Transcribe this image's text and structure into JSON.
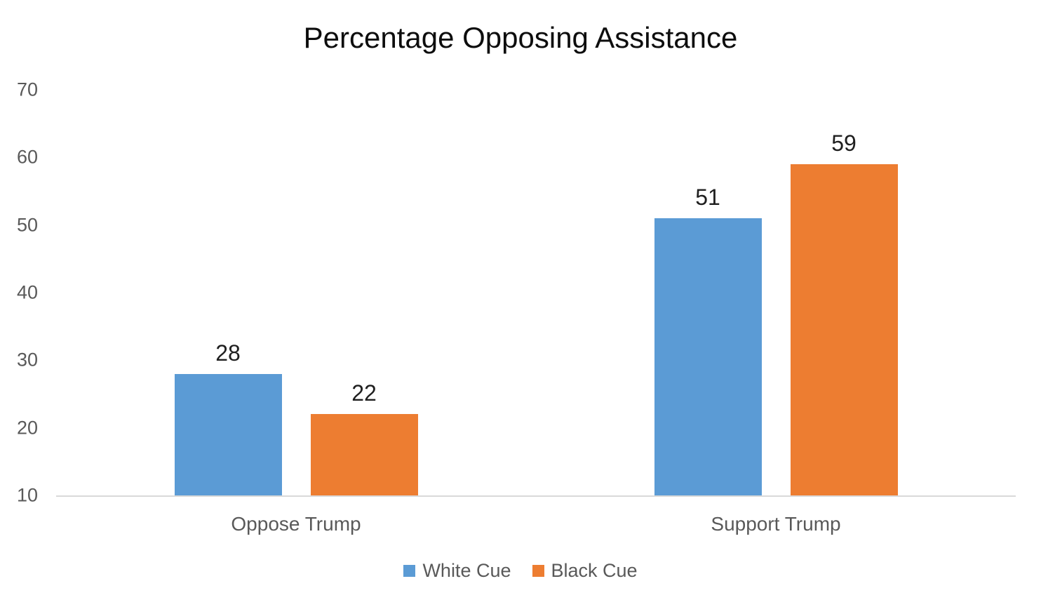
{
  "chart_data": {
    "type": "bar",
    "title": "Percentage Opposing Assistance",
    "categories": [
      "Oppose Trump",
      "Support Trump"
    ],
    "series": [
      {
        "name": "White Cue",
        "color": "#5B9BD5",
        "values": [
          28,
          51
        ]
      },
      {
        "name": "Black Cue",
        "color": "#ED7D31",
        "values": [
          22,
          59
        ]
      }
    ],
    "xlabel": "",
    "ylabel": "",
    "ylim": [
      10,
      70
    ],
    "yticks": [
      10,
      20,
      30,
      40,
      50,
      60,
      70
    ],
    "grid": false,
    "legend_position": "bottom"
  },
  "colors": {
    "axis_line": "#D9D9D9",
    "tick_label": "#595959",
    "category_label": "#595959",
    "legend_label": "#595959",
    "data_label": "#1F1F1F",
    "title": "#0D0D0D",
    "background": "#FFFFFF"
  }
}
